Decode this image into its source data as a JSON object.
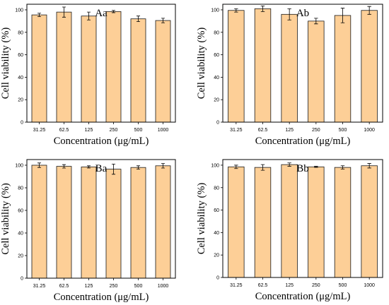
{
  "colors": {
    "bar_fill": "#fdcf97",
    "bar_stroke": "#1a1a1a",
    "axis": "#000000"
  },
  "chart_data": [
    {
      "type": "bar",
      "title": "Aa",
      "xlabel": "Concentration (μg/mL)",
      "ylabel": "Cell viability (%)",
      "categories": [
        "31.25",
        "62.5",
        "125",
        "250",
        "500",
        "1000"
      ],
      "values": [
        95.5,
        98,
        94.5,
        98.5,
        92,
        90.5
      ],
      "errors": [
        1.5,
        4.5,
        3.5,
        1.0,
        2.5,
        2.0
      ],
      "ylim": [
        0,
        105
      ],
      "yticks": [
        0,
        20,
        40,
        60,
        80,
        100
      ],
      "grid": false
    },
    {
      "type": "bar",
      "title": "Ab",
      "xlabel": "Concentration (μg/mL)",
      "ylabel": "Cell viability (%)",
      "categories": [
        "31.25",
        "62.5",
        "125",
        "250",
        "500",
        "1000"
      ],
      "values": [
        99.5,
        101,
        96,
        90,
        95,
        99.5
      ],
      "errors": [
        1.5,
        2.5,
        5.0,
        2.5,
        6.5,
        3.5
      ],
      "ylim": [
        0,
        105
      ],
      "yticks": [
        0,
        20,
        40,
        60,
        80,
        100
      ],
      "grid": false
    },
    {
      "type": "bar",
      "title": "Ba",
      "xlabel": "Concentration (μg/mL)",
      "ylabel": "Cell viability (%)",
      "categories": [
        "31.25",
        "62.5",
        "125",
        "250",
        "500",
        "1000"
      ],
      "values": [
        100,
        99,
        98.5,
        96.5,
        98,
        99.5
      ],
      "errors": [
        2.0,
        1.5,
        1.0,
        4.5,
        1.5,
        2.0
      ],
      "ylim": [
        0,
        105
      ],
      "yticks": [
        0,
        20,
        40,
        60,
        80,
        100
      ],
      "grid": false
    },
    {
      "type": "bar",
      "title": "Bb",
      "xlabel": "Concentration (μg/mL)",
      "ylabel": "Cell viability (%)",
      "categories": [
        "31.25",
        "62.5",
        "125",
        "250",
        "500",
        "1000"
      ],
      "values": [
        98.5,
        98,
        100.5,
        98.5,
        98,
        99.5
      ],
      "errors": [
        1.5,
        2.5,
        1.5,
        0.5,
        1.5,
        2.0
      ],
      "ylim": [
        0,
        105
      ],
      "yticks": [
        0,
        20,
        40,
        60,
        80,
        100
      ],
      "grid": false
    }
  ]
}
